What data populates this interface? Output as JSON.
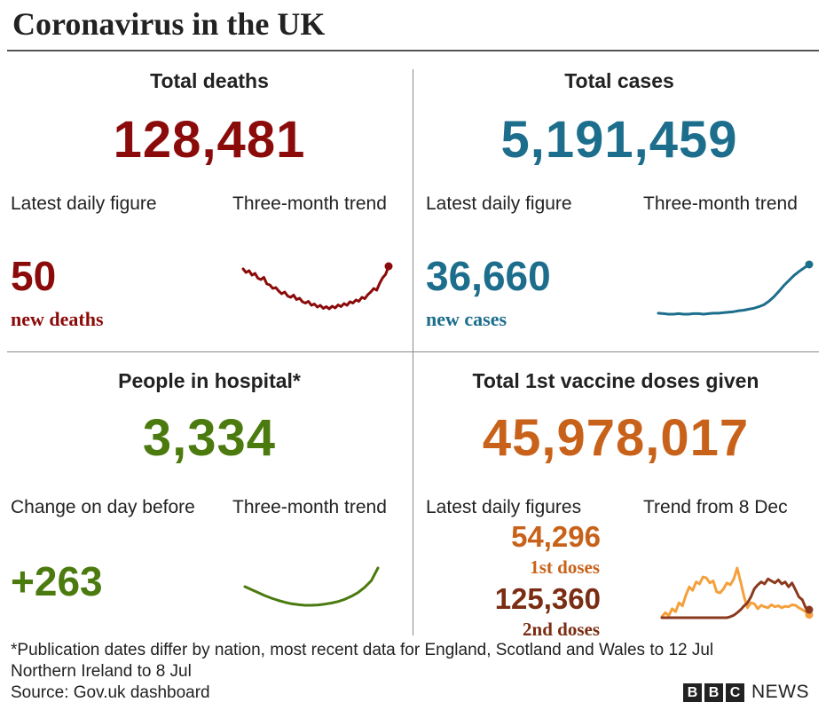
{
  "title": "Coronavirus in the UK",
  "colors": {
    "deaths": "#8b0a0a",
    "cases": "#1c6e8c",
    "hospital": "#4b7a0f",
    "vaccine_first": "#c8621a",
    "vaccine_second": "#7a2d12",
    "vaccine_first_line": "#f5a03c",
    "vaccine_second_line": "#8b3a1e"
  },
  "deaths": {
    "heading": "Total deaths",
    "total": "128,481",
    "daily_label": "Latest daily figure",
    "trend_label": "Three-month trend",
    "daily_value": "50",
    "daily_unit": "new deaths"
  },
  "cases": {
    "heading": "Total cases",
    "total": "5,191,459",
    "daily_label": "Latest daily figure",
    "trend_label": "Three-month trend",
    "daily_value": "36,660",
    "daily_unit": "new cases"
  },
  "hospital": {
    "heading": "People in hospital*",
    "total": "3,334",
    "daily_label": "Change on day before",
    "trend_label": "Three-month trend",
    "daily_value": "+263"
  },
  "vaccine": {
    "heading": "Total 1st vaccine doses given",
    "total": "45,978,017",
    "daily_label": "Latest daily figures",
    "trend_label": "Trend from 8 Dec",
    "first_value": "54,296",
    "first_unit": "1st doses",
    "second_value": "125,360",
    "second_unit": "2nd doses"
  },
  "footer": {
    "note_line1": "*Publication dates differ by nation, most recent data for England, Scotland and Wales to 12 Jul",
    "note_line2": "Northern Ireland to 8 Jul",
    "source": "Source: Gov.uk dashboard",
    "logo_letters": [
      "B",
      "B",
      "C"
    ],
    "logo_text": "NEWS"
  },
  "chart_data": [
    {
      "type": "line",
      "series": [
        {
          "values": [
            0.94,
            0.86,
            0.9,
            0.8,
            0.84,
            0.73,
            0.7,
            0.75,
            0.6,
            0.58,
            0.5,
            0.52,
            0.44,
            0.38,
            0.42,
            0.33,
            0.3,
            0.35,
            0.25,
            0.28,
            0.2,
            0.17,
            0.21,
            0.12,
            0.15,
            0.08,
            0.12,
            0.05,
            0.09,
            0.04,
            0.1,
            0.06,
            0.13,
            0.09,
            0.16,
            0.12,
            0.2,
            0.17,
            0.24,
            0.21,
            0.3,
            0.27,
            0.36,
            0.42,
            0.5,
            0.46,
            0.62,
            0.74,
            0.82,
            1.0
          ]
        }
      ]
    },
    {
      "type": "line",
      "series": [
        {
          "values": [
            0.02,
            0.01,
            0.0,
            0.0,
            0.01,
            0.0,
            0.0,
            0.01,
            0.01,
            0.0,
            0.01,
            0.02,
            0.02,
            0.03,
            0.04,
            0.05,
            0.07,
            0.08,
            0.1,
            0.12,
            0.15,
            0.19,
            0.26,
            0.35,
            0.46,
            0.58,
            0.68,
            0.78,
            0.86,
            0.93,
            1.0
          ]
        }
      ]
    },
    {
      "type": "line",
      "series": [
        {
          "values": [
            0.5,
            0.42,
            0.34,
            0.26,
            0.19,
            0.13,
            0.08,
            0.04,
            0.02,
            0.0,
            0.0,
            0.01,
            0.03,
            0.06,
            0.1,
            0.16,
            0.24,
            0.34,
            0.48,
            0.66,
            1.0
          ]
        }
      ]
    },
    {
      "type": "line",
      "series": [
        {
          "values": [
            0.02,
            0.1,
            0.04,
            0.18,
            0.12,
            0.3,
            0.24,
            0.45,
            0.62,
            0.55,
            0.72,
            0.68,
            0.82,
            0.8,
            0.7,
            0.74,
            0.52,
            0.5,
            0.58,
            0.7,
            0.66,
            0.78,
            1.0,
            0.72,
            0.42,
            0.2,
            0.3,
            0.28,
            0.18,
            0.25,
            0.22,
            0.2,
            0.26,
            0.22,
            0.24,
            0.2,
            0.23,
            0.22,
            0.26,
            0.25,
            0.2,
            0.16,
            0.12,
            0.06
          ]
        },
        {
          "values": [
            0.0,
            0.0,
            0.0,
            0.0,
            0.0,
            0.0,
            0.0,
            0.0,
            0.0,
            0.0,
            0.0,
            0.0,
            0.0,
            0.0,
            0.0,
            0.0,
            0.0,
            0.0,
            0.0,
            0.0,
            0.02,
            0.05,
            0.1,
            0.16,
            0.24,
            0.3,
            0.42,
            0.58,
            0.66,
            0.72,
            0.68,
            0.78,
            0.74,
            0.7,
            0.76,
            0.68,
            0.72,
            0.62,
            0.7,
            0.56,
            0.42,
            0.36,
            0.2,
            0.16
          ]
        }
      ]
    }
  ]
}
